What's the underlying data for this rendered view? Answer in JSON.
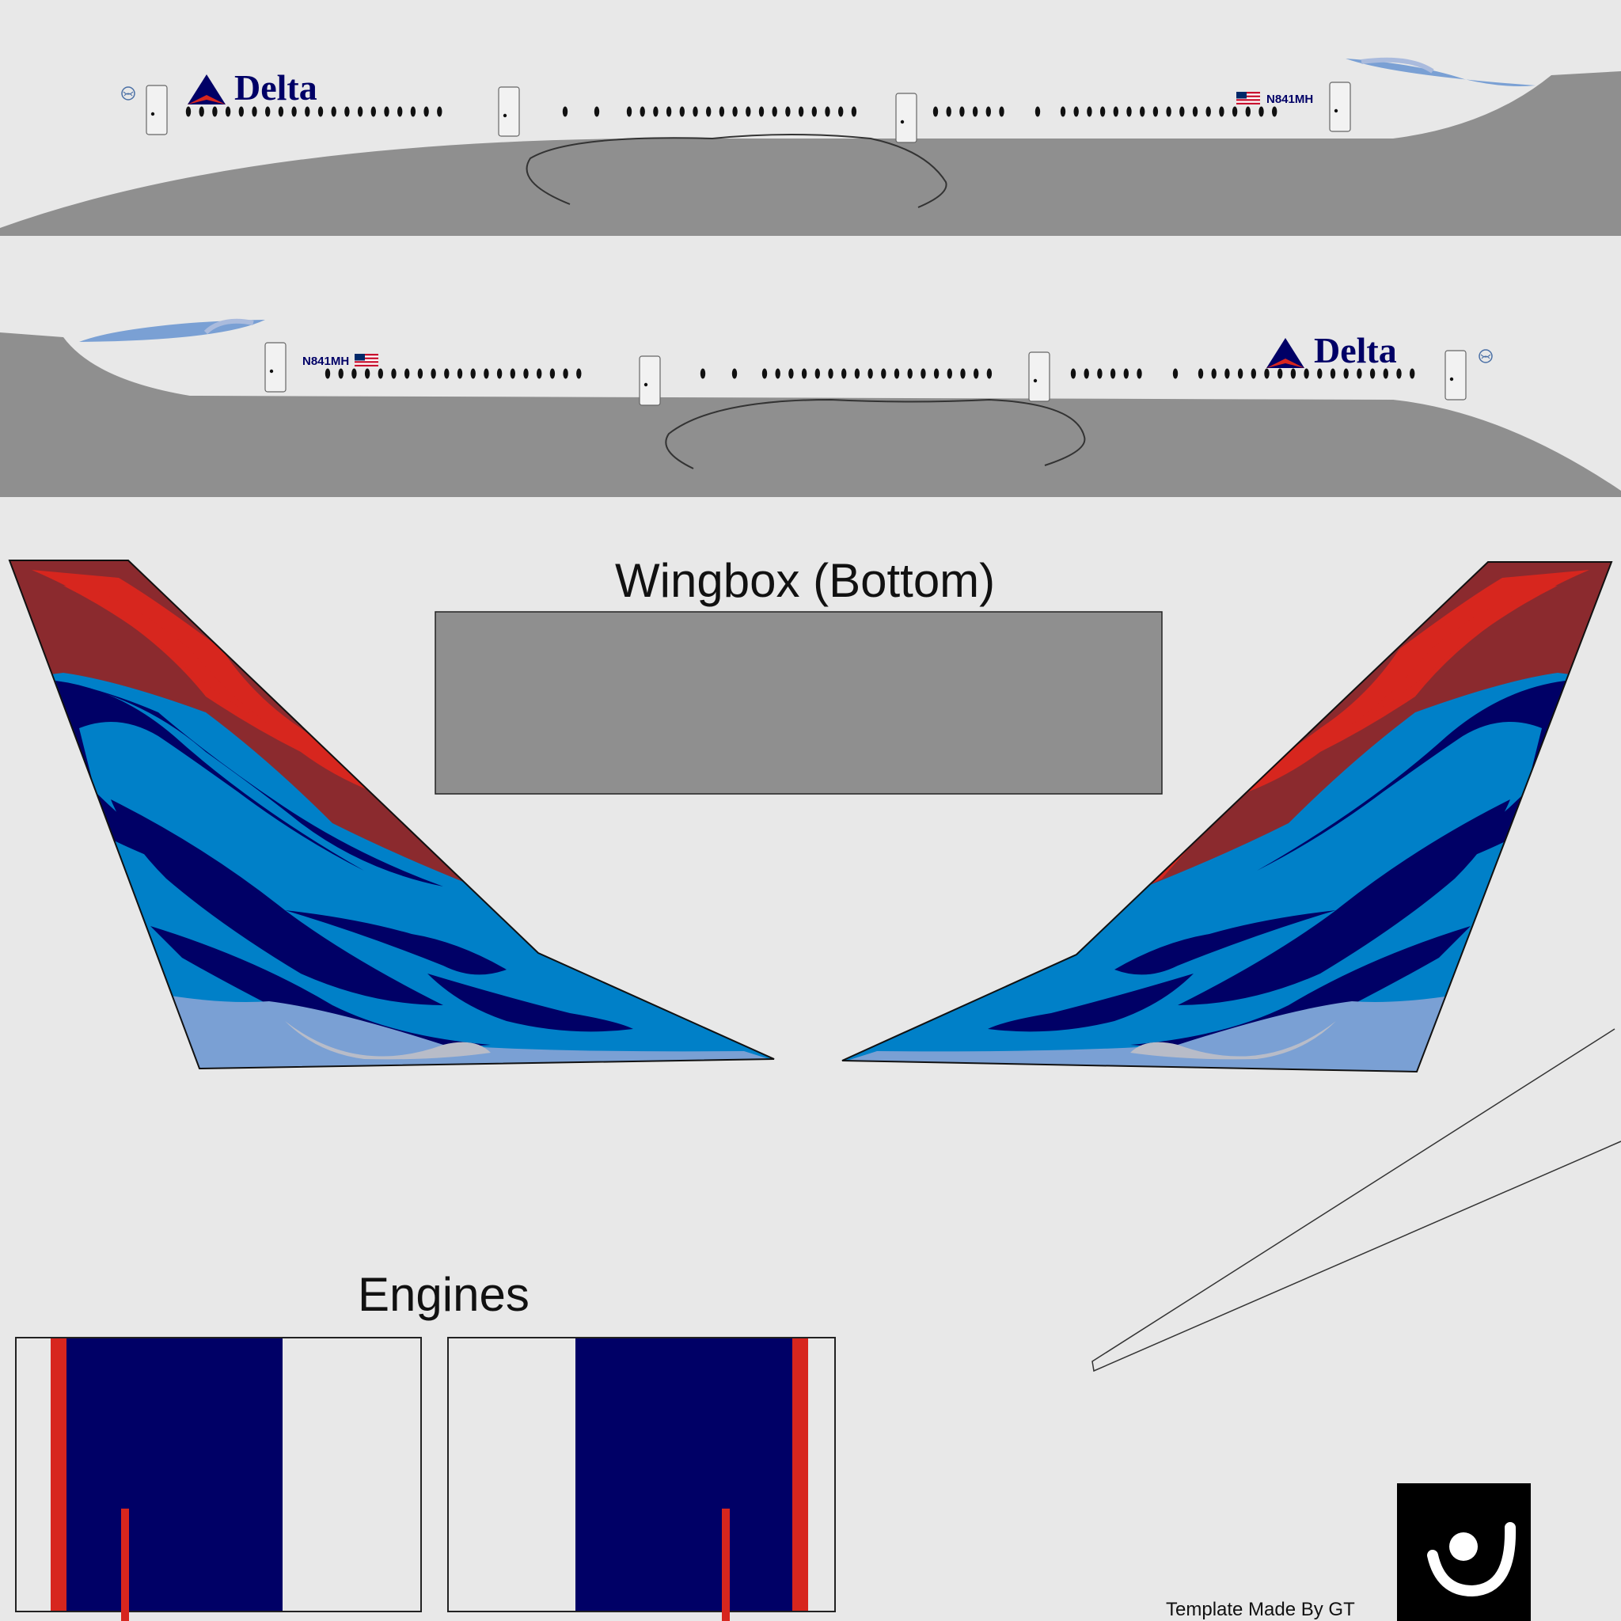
{
  "airline": {
    "name": "Delta",
    "registration": "N841MH",
    "colors": {
      "navy": "#000066",
      "mid_blue": "#0080c8",
      "light_blue": "#7aa0d4",
      "red": "#d7261e",
      "dark_red": "#8b2a2e",
      "fuselage_gray": "#8f8f8f",
      "background": "#e8e8e8"
    }
  },
  "sections": {
    "wingbox_title": "Wingbox (Bottom)",
    "engines_title": "Engines"
  },
  "footer": {
    "credit": "Template Made By GT"
  },
  "icons": [
    "delta-widget-logo-icon",
    "us-flag-icon",
    "globe-seal-icon",
    "author-logo-icon"
  ]
}
